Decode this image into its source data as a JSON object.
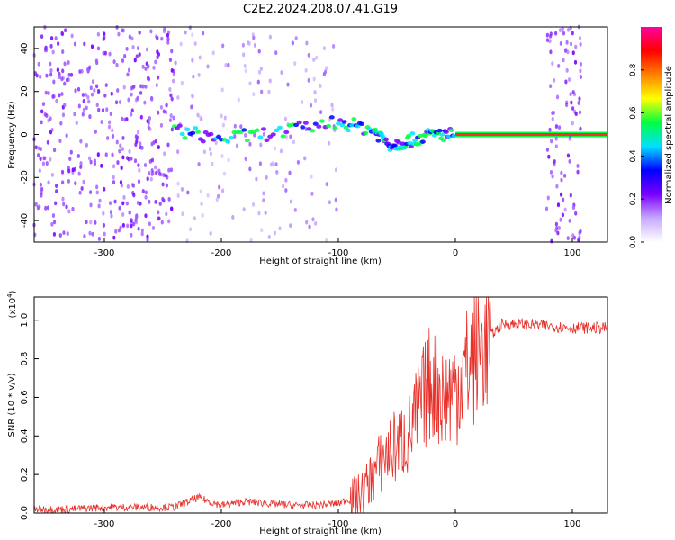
{
  "figure": {
    "title": "C2E2.2024.208.07.41.G19",
    "colors": {
      "snr_line": "#e8302a",
      "signal_band": "#ff2a2a",
      "axis": "#000000"
    }
  },
  "chart_data": [
    {
      "type": "heatmap",
      "xlabel": "Height of straight line (km)",
      "ylabel": "Frequency (Hz)",
      "xlim": [
        -360,
        130
      ],
      "ylim": [
        -50,
        50
      ],
      "x_ticks": [
        -300,
        -200,
        -100,
        0,
        100
      ],
      "y_ticks": [
        -40,
        -20,
        0,
        20,
        40
      ],
      "grid": false,
      "colorbar": {
        "label": "Normalized spectral amplitude",
        "range": [
          0.0,
          1.0
        ],
        "ticks": [
          0.0,
          0.2,
          0.4,
          0.6,
          0.8
        ],
        "colormap": [
          "#ffffff",
          "#c8a8ff",
          "#7a00ff",
          "#0000ff",
          "#00e0ff",
          "#00ff40",
          "#ffff00",
          "#ff8000",
          "#ff0000",
          "#ff00a0"
        ]
      },
      "regions": [
        {
          "name": "noise",
          "x_range": [
            -360,
            -240
          ],
          "freq_range": [
            -50,
            50
          ],
          "amplitude": 0.15
        },
        {
          "name": "sparse-noise",
          "x_range": [
            -240,
            -100
          ],
          "freq_range": [
            -50,
            50
          ],
          "amplitude": 0.05
        },
        {
          "name": "signal-track",
          "points": [
            [
              -240,
              2
            ],
            [
              -200,
              -2
            ],
            [
              -150,
              1
            ],
            [
              -100,
              6
            ],
            [
              -70,
              2
            ],
            [
              -55,
              -5
            ],
            [
              -40,
              -3
            ],
            [
              -20,
              0
            ],
            [
              0,
              0
            ]
          ],
          "amplitude": 0.5
        },
        {
          "name": "steady-signal",
          "x_range": [
            0,
            130
          ],
          "freq": 0,
          "amplitude": 1.0
        },
        {
          "name": "noise-strip",
          "x_range": [
            78,
            108
          ],
          "freq_range": [
            -50,
            50
          ],
          "amplitude": 0.15
        }
      ]
    },
    {
      "type": "line",
      "xlabel": "Height of straight line (km)",
      "ylabel": "SNR (10 * v/v)",
      "y_scale_label": "(x10",
      "y_scale_exp": "4",
      "y_scale_close": ")",
      "xlim": [
        -360,
        130
      ],
      "ylim": [
        0.0,
        1.12
      ],
      "x_ticks": [
        -300,
        -200,
        -100,
        0,
        100
      ],
      "y_ticks": [
        "0.0",
        "0.2",
        "0.4",
        "0.6",
        "0.8",
        "1.0"
      ],
      "grid": false,
      "series": [
        {
          "x": [
            -360,
            -330,
            -300,
            -270,
            -240,
            -220,
            -200,
            -180,
            -160,
            -140,
            -120,
            -100,
            -80,
            -60,
            -50,
            -40,
            -30,
            -20,
            -10,
            0,
            10,
            20,
            30,
            40,
            60,
            80,
            100,
            130
          ],
          "y": [
            0.02,
            0.02,
            0.03,
            0.03,
            0.03,
            0.08,
            0.04,
            0.06,
            0.05,
            0.04,
            0.04,
            0.05,
            0.1,
            0.3,
            0.35,
            0.4,
            0.55,
            0.7,
            0.6,
            0.65,
            0.75,
            0.85,
            0.92,
            0.98,
            0.98,
            0.97,
            0.96,
            0.96
          ]
        }
      ]
    }
  ]
}
